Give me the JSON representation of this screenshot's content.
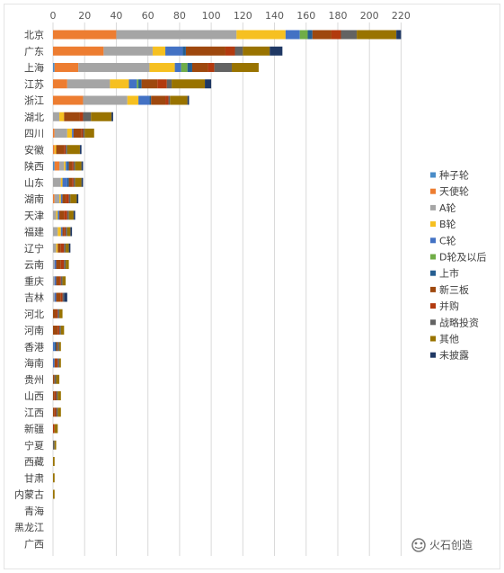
{
  "chart_data": {
    "type": "bar",
    "orientation": "horizontal",
    "stacked": true,
    "xlim": [
      0,
      220
    ],
    "x_ticks": [
      "0",
      "20",
      "40",
      "60",
      "80",
      "100",
      "120",
      "140",
      "160",
      "180",
      "200",
      "220"
    ],
    "grid": true,
    "legend_position": "right",
    "categories": [
      "北京",
      "广东",
      "上海",
      "江苏",
      "浙江",
      "湖北",
      "四川",
      "安徽",
      "陕西",
      "山东",
      "湖南",
      "天津",
      "福建",
      "辽宁",
      "云南",
      "重庆",
      "吉林",
      "河北",
      "河南",
      "香港",
      "海南",
      "贵州",
      "山西",
      "江西",
      "新疆",
      "宁夏",
      "西藏",
      "甘肃",
      "内蒙古",
      "青海",
      "黑龙江",
      "广西"
    ],
    "series": [
      {
        "name": "种子轮",
        "color": "#4a8cc8",
        "values": [
          0,
          0,
          1,
          0,
          0,
          0,
          0,
          0,
          1,
          0,
          0,
          0,
          0,
          0,
          0,
          0,
          0,
          0,
          0,
          0,
          0,
          0,
          0,
          0,
          0,
          0,
          0,
          0,
          0,
          0,
          0,
          0
        ]
      },
      {
        "name": "天使轮",
        "color": "#ed7d31",
        "values": [
          40,
          32,
          15,
          9,
          19,
          0,
          1,
          1,
          3,
          0,
          1,
          0,
          0,
          0,
          0,
          0,
          0,
          0,
          0,
          0,
          0,
          0,
          0,
          0,
          0,
          0,
          0,
          0,
          0,
          0,
          0,
          0
        ]
      },
      {
        "name": "A轮",
        "color": "#a5a5a5",
        "values": [
          76,
          31,
          45,
          27,
          28,
          4,
          8,
          0,
          3,
          5,
          3,
          2,
          3,
          2,
          1,
          1,
          1,
          0,
          0,
          0,
          0,
          0,
          0,
          0,
          0,
          0,
          0,
          0,
          0,
          0,
          0,
          0
        ]
      },
      {
        "name": "B轮",
        "color": "#f6c021",
        "values": [
          31,
          8,
          16,
          12,
          7,
          3,
          3,
          1,
          1,
          1,
          1,
          1,
          2,
          1,
          0,
          0,
          0,
          0,
          0,
          0,
          0,
          0,
          0,
          0,
          0,
          0,
          0,
          0,
          0,
          0,
          0,
          0
        ]
      },
      {
        "name": "C轮",
        "color": "#4372c4",
        "values": [
          9,
          11,
          4,
          5,
          7,
          0,
          1,
          0,
          1,
          3,
          1,
          1,
          1,
          0,
          1,
          1,
          1,
          0,
          0,
          1,
          1,
          0,
          0,
          0,
          0,
          0,
          0,
          0,
          0,
          0,
          0,
          0
        ]
      },
      {
        "name": "D轮及以后",
        "color": "#70ad47",
        "values": [
          5,
          0,
          4,
          1,
          0,
          0,
          0,
          0,
          0,
          0,
          0,
          0,
          0,
          0,
          0,
          0,
          0,
          0,
          0,
          0,
          0,
          0,
          0,
          0,
          0,
          0,
          0,
          0,
          0,
          0,
          0,
          0
        ]
      },
      {
        "name": "上市",
        "color": "#255e91",
        "values": [
          3,
          2,
          3,
          2,
          1,
          0,
          0,
          0,
          1,
          1,
          0,
          0,
          0,
          0,
          0,
          0,
          0,
          0,
          0,
          1,
          0,
          0,
          0,
          0,
          0,
          0,
          0,
          0,
          0,
          0,
          0,
          0
        ]
      },
      {
        "name": "新三板",
        "color": "#9e480e",
        "values": [
          12,
          25,
          10,
          10,
          9,
          10,
          5,
          5,
          2,
          2,
          2,
          3,
          1,
          2,
          3,
          2,
          3,
          2,
          3,
          1,
          1,
          1,
          1,
          1,
          0,
          0,
          0,
          0,
          0,
          0,
          0,
          0
        ]
      },
      {
        "name": "并购",
        "color": "#b23a0f",
        "values": [
          6,
          6,
          4,
          6,
          2,
          2,
          1,
          1,
          1,
          1,
          2,
          2,
          1,
          2,
          2,
          1,
          1,
          1,
          1,
          0,
          1,
          0,
          1,
          1,
          1,
          0,
          0,
          0,
          0,
          0,
          0,
          0
        ]
      },
      {
        "name": "战略投资",
        "color": "#636363",
        "values": [
          10,
          5,
          11,
          3,
          1,
          5,
          1,
          1,
          1,
          1,
          1,
          1,
          1,
          1,
          1,
          1,
          1,
          1,
          1,
          1,
          1,
          1,
          1,
          1,
          0,
          1,
          0,
          0,
          0,
          0,
          0,
          0
        ]
      },
      {
        "name": "其他",
        "color": "#997300",
        "values": [
          25,
          17,
          17,
          21,
          11,
          13,
          6,
          8,
          4,
          4,
          4,
          3,
          2,
          2,
          2,
          2,
          0,
          2,
          2,
          1,
          1,
          2,
          2,
          2,
          2,
          1,
          1,
          1,
          1,
          0,
          0,
          0
        ]
      },
      {
        "name": "未披露",
        "color": "#1f3864",
        "values": [
          3,
          8,
          0,
          4,
          1,
          1,
          0,
          1,
          1,
          1,
          1,
          1,
          1,
          1,
          0,
          0,
          2,
          0,
          0,
          0,
          0,
          0,
          0,
          0,
          0,
          0,
          0,
          0,
          0,
          0,
          0,
          0
        ]
      }
    ]
  },
  "watermark": {
    "text": "火石创造"
  }
}
